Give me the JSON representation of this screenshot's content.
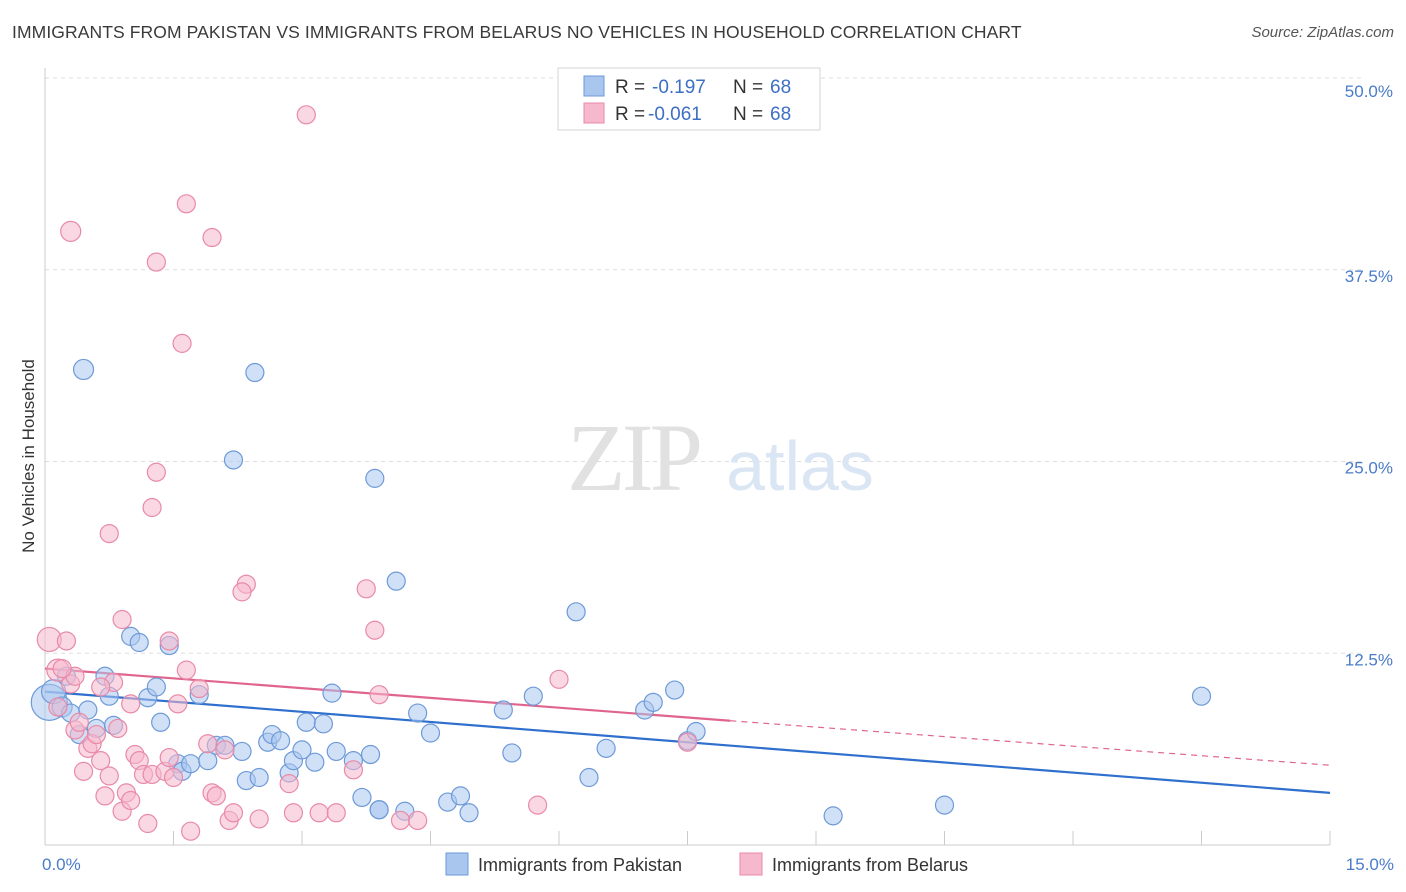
{
  "title": "IMMIGRANTS FROM PAKISTAN VS IMMIGRANTS FROM BELARUS NO VEHICLES IN HOUSEHOLD CORRELATION CHART",
  "source": "Source: ZipAtlas.com",
  "watermark": {
    "zip": "ZIP",
    "atlas": "atlas"
  },
  "colors": {
    "blue_fill": "#a9c6ef",
    "blue_stroke": "#6e9ad8",
    "blue_line": "#2f6fcd",
    "pink_fill": "#f5b8cc",
    "pink_stroke": "#e88aa8",
    "pink_line": "#e0658d",
    "grid": "#dddddd",
    "tick_text": "#4a7cc9"
  },
  "legend_box": {
    "rows": [
      {
        "r_label": "R =",
        "r_value": "-0.197",
        "n_label": "N =",
        "n_value": "68"
      },
      {
        "r_label": "R =",
        "r_value": "-0.061",
        "n_label": "N =",
        "n_value": "68"
      }
    ]
  },
  "bottom_legend": [
    "Immigrants from Pakistan",
    "Immigrants from Belarus"
  ],
  "chart_data": {
    "type": "scatter",
    "ylabel": "No Vehicles in Household",
    "xlim": [
      0,
      15
    ],
    "ylim": [
      0,
      50
    ],
    "y_ticks": [
      {
        "value": 12.5,
        "label": "12.5%"
      },
      {
        "value": 25.0,
        "label": "25.0%"
      },
      {
        "value": 37.5,
        "label": "37.5%"
      },
      {
        "value": 50.0,
        "label": "50.0%"
      }
    ],
    "x_ticks": [
      {
        "value": 0,
        "label": "0.0%"
      },
      {
        "value": 15,
        "label": "15.0%"
      }
    ],
    "grid": true,
    "series": [
      {
        "name": "Immigrants from Pakistan",
        "color": "blue",
        "trend": {
          "x0": 0,
          "y0": 10.0,
          "x1": 15,
          "y1": 3.4,
          "dashed_from": null
        },
        "points": [
          [
            0.05,
            9.3,
            18
          ],
          [
            0.1,
            10.0,
            12
          ],
          [
            0.2,
            9.0,
            10
          ],
          [
            0.25,
            11.0,
            9
          ],
          [
            0.3,
            8.6,
            9
          ],
          [
            0.4,
            7.2,
            9
          ],
          [
            0.5,
            8.8,
            9
          ],
          [
            0.6,
            7.6,
            9
          ],
          [
            0.8,
            7.8,
            9
          ],
          [
            0.7,
            11.0,
            9
          ],
          [
            0.75,
            9.7,
            9
          ],
          [
            1.0,
            13.6,
            9
          ],
          [
            1.1,
            13.2,
            9
          ],
          [
            1.2,
            9.6,
            9
          ],
          [
            1.3,
            10.3,
            9
          ],
          [
            1.35,
            8.0,
            9
          ],
          [
            1.45,
            13.0,
            9
          ],
          [
            1.55,
            5.3,
            9
          ],
          [
            1.6,
            4.8,
            9
          ],
          [
            1.7,
            5.3,
            9
          ],
          [
            1.8,
            9.8,
            9
          ],
          [
            1.9,
            5.5,
            9
          ],
          [
            2.0,
            6.5,
            9
          ],
          [
            2.1,
            6.5,
            9
          ],
          [
            2.3,
            6.1,
            9
          ],
          [
            2.35,
            4.2,
            9
          ],
          [
            2.5,
            4.4,
            9
          ],
          [
            2.6,
            6.7,
            9
          ],
          [
            2.65,
            7.2,
            9
          ],
          [
            2.75,
            6.8,
            9
          ],
          [
            2.85,
            4.7,
            9
          ],
          [
            2.9,
            5.5,
            9
          ],
          [
            3.0,
            6.2,
            9
          ],
          [
            3.05,
            8.0,
            9
          ],
          [
            3.15,
            5.4,
            9
          ],
          [
            3.25,
            7.9,
            9
          ],
          [
            3.35,
            9.9,
            9
          ],
          [
            3.4,
            6.1,
            9
          ],
          [
            3.6,
            5.5,
            9
          ],
          [
            3.7,
            3.1,
            9
          ],
          [
            3.8,
            5.9,
            9
          ],
          [
            3.9,
            2.3,
            9
          ],
          [
            4.2,
            2.2,
            9
          ],
          [
            4.35,
            8.6,
            9
          ],
          [
            4.5,
            7.3,
            9
          ],
          [
            4.7,
            2.8,
            9
          ],
          [
            4.85,
            3.2,
            9
          ],
          [
            4.95,
            2.1,
            9
          ],
          [
            5.35,
            8.8,
            9
          ],
          [
            5.45,
            6.0,
            9
          ],
          [
            5.7,
            9.7,
            9
          ],
          [
            6.35,
            4.4,
            9
          ],
          [
            6.55,
            6.3,
            9
          ],
          [
            7.0,
            8.8,
            9
          ],
          [
            7.1,
            9.3,
            9
          ],
          [
            7.35,
            10.1,
            9
          ],
          [
            7.5,
            6.8,
            9
          ],
          [
            7.6,
            7.4,
            9
          ],
          [
            9.2,
            1.9,
            9
          ],
          [
            10.5,
            2.6,
            9
          ],
          [
            0.45,
            31.0,
            10
          ],
          [
            2.45,
            30.8,
            9
          ],
          [
            2.2,
            25.1,
            9
          ],
          [
            3.85,
            23.9,
            9
          ],
          [
            4.1,
            17.2,
            9
          ],
          [
            6.2,
            15.2,
            9
          ],
          [
            13.5,
            9.7,
            9
          ],
          [
            3.9,
            2.3,
            9
          ]
        ]
      },
      {
        "name": "Immigrants from Belarus",
        "color": "pink",
        "trend": {
          "x0": 0,
          "y0": 11.5,
          "x1": 8.0,
          "y1": 8.1,
          "dashed_from": 8.0,
          "dashed_to_x": 15,
          "dashed_to_y": 5.2
        },
        "points": [
          [
            0.05,
            13.4,
            12
          ],
          [
            0.15,
            11.4,
            11
          ],
          [
            0.25,
            13.3,
            9
          ],
          [
            0.3,
            10.5,
            9
          ],
          [
            0.35,
            11.0,
            9
          ],
          [
            0.35,
            7.5,
            9
          ],
          [
            0.45,
            4.8,
            9
          ],
          [
            0.5,
            6.3,
            9
          ],
          [
            0.55,
            6.6,
            9
          ],
          [
            0.6,
            7.2,
            9
          ],
          [
            0.65,
            5.5,
            9
          ],
          [
            0.7,
            3.2,
            9
          ],
          [
            0.75,
            4.5,
            9
          ],
          [
            0.8,
            10.6,
            9
          ],
          [
            0.85,
            7.6,
            9
          ],
          [
            0.9,
            2.2,
            9
          ],
          [
            0.95,
            3.4,
            9
          ],
          [
            1.0,
            2.9,
            9
          ],
          [
            1.05,
            5.9,
            9
          ],
          [
            1.1,
            5.5,
            9
          ],
          [
            1.15,
            4.6,
            9
          ],
          [
            1.2,
            1.4,
            9
          ],
          [
            1.25,
            4.6,
            9
          ],
          [
            1.4,
            4.8,
            9
          ],
          [
            1.45,
            5.7,
            9
          ],
          [
            1.5,
            4.4,
            9
          ],
          [
            1.55,
            9.2,
            9
          ],
          [
            1.65,
            11.4,
            9
          ],
          [
            1.7,
            0.9,
            9
          ],
          [
            1.8,
            10.2,
            9
          ],
          [
            1.9,
            6.6,
            9
          ],
          [
            1.95,
            3.4,
            9
          ],
          [
            2.0,
            3.2,
            9
          ],
          [
            2.1,
            6.2,
            9
          ],
          [
            2.15,
            1.6,
            9
          ],
          [
            2.2,
            2.1,
            9
          ],
          [
            2.5,
            1.7,
            9
          ],
          [
            2.85,
            4.0,
            9
          ],
          [
            2.9,
            2.1,
            9
          ],
          [
            3.2,
            2.1,
            9
          ],
          [
            3.4,
            2.1,
            9
          ],
          [
            3.6,
            4.9,
            9
          ],
          [
            3.9,
            9.8,
            9
          ],
          [
            4.15,
            1.6,
            9
          ],
          [
            4.35,
            1.6,
            9
          ],
          [
            5.75,
            2.6,
            9
          ],
          [
            6.0,
            10.8,
            9
          ],
          [
            7.5,
            6.7,
            9
          ],
          [
            0.3,
            40.0,
            10
          ],
          [
            1.3,
            38.0,
            9
          ],
          [
            1.65,
            41.8,
            9
          ],
          [
            1.95,
            39.6,
            9
          ],
          [
            3.05,
            47.6,
            9
          ],
          [
            1.6,
            32.7,
            9
          ],
          [
            1.3,
            24.3,
            9
          ],
          [
            1.25,
            22.0,
            9
          ],
          [
            0.75,
            20.3,
            9
          ],
          [
            2.35,
            17.0,
            9
          ],
          [
            2.3,
            16.5,
            9
          ],
          [
            3.75,
            16.7,
            9
          ],
          [
            0.9,
            14.7,
            9
          ],
          [
            1.45,
            13.3,
            9
          ],
          [
            3.85,
            14.0,
            9
          ],
          [
            0.2,
            11.5,
            9
          ],
          [
            0.15,
            9.0,
            9
          ],
          [
            0.4,
            8.0,
            9
          ],
          [
            0.65,
            10.3,
            9
          ],
          [
            1.0,
            9.2,
            9
          ]
        ]
      }
    ]
  }
}
